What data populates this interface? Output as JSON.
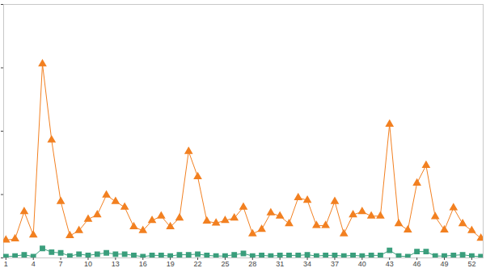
{
  "chart_data": {
    "type": "line",
    "x": [
      1,
      2,
      3,
      4,
      5,
      6,
      7,
      8,
      9,
      10,
      11,
      12,
      13,
      14,
      15,
      16,
      17,
      18,
      19,
      20,
      21,
      22,
      23,
      24,
      25,
      26,
      27,
      28,
      29,
      30,
      31,
      32,
      33,
      34,
      35,
      36,
      37,
      38,
      39,
      40,
      41,
      42,
      43,
      44,
      45,
      46,
      47,
      48,
      49,
      50,
      51,
      52,
      53
    ],
    "xlim": [
      0.75,
      53.25
    ],
    "xticks": [
      1,
      4,
      7,
      10,
      13,
      16,
      19,
      22,
      25,
      28,
      31,
      34,
      37,
      40,
      43,
      46,
      49,
      52
    ],
    "ylim": [
      0,
      4
    ],
    "yticks": [
      0,
      1,
      2,
      3,
      4
    ],
    "grid": false,
    "tick_labels": "x",
    "series": [
      {
        "color": "#f28021",
        "marker": "triangle",
        "values": [
          0.28,
          0.3,
          0.73,
          0.36,
          3.06,
          1.86,
          0.89,
          0.35,
          0.43,
          0.61,
          0.68,
          0.99,
          0.89,
          0.8,
          0.49,
          0.43,
          0.59,
          0.66,
          0.49,
          0.63,
          1.68,
          1.28,
          0.58,
          0.55,
          0.59,
          0.63,
          0.8,
          0.38,
          0.45,
          0.71,
          0.66,
          0.54,
          0.95,
          0.91,
          0.51,
          0.51,
          0.89,
          0.38,
          0.68,
          0.73,
          0.66,
          0.66,
          2.11,
          0.54,
          0.44,
          1.18,
          1.46,
          0.65,
          0.44,
          0.79,
          0.54,
          0.43,
          0.31
        ]
      },
      {
        "color": "#3a9e7c",
        "marker": "square",
        "values": [
          0.02,
          0.03,
          0.05,
          0.02,
          0.15,
          0.09,
          0.08,
          0.03,
          0.06,
          0.04,
          0.06,
          0.08,
          0.06,
          0.06,
          0.04,
          0.02,
          0.04,
          0.04,
          0.03,
          0.05,
          0.05,
          0.06,
          0.04,
          0.03,
          0.03,
          0.05,
          0.07,
          0.03,
          0.04,
          0.03,
          0.04,
          0.04,
          0.04,
          0.05,
          0.03,
          0.04,
          0.04,
          0.03,
          0.04,
          0.03,
          0.04,
          0.04,
          0.12,
          0.03,
          0.02,
          0.1,
          0.1,
          0.03,
          0.03,
          0.04,
          0.05,
          0.03,
          0.02
        ]
      }
    ]
  }
}
